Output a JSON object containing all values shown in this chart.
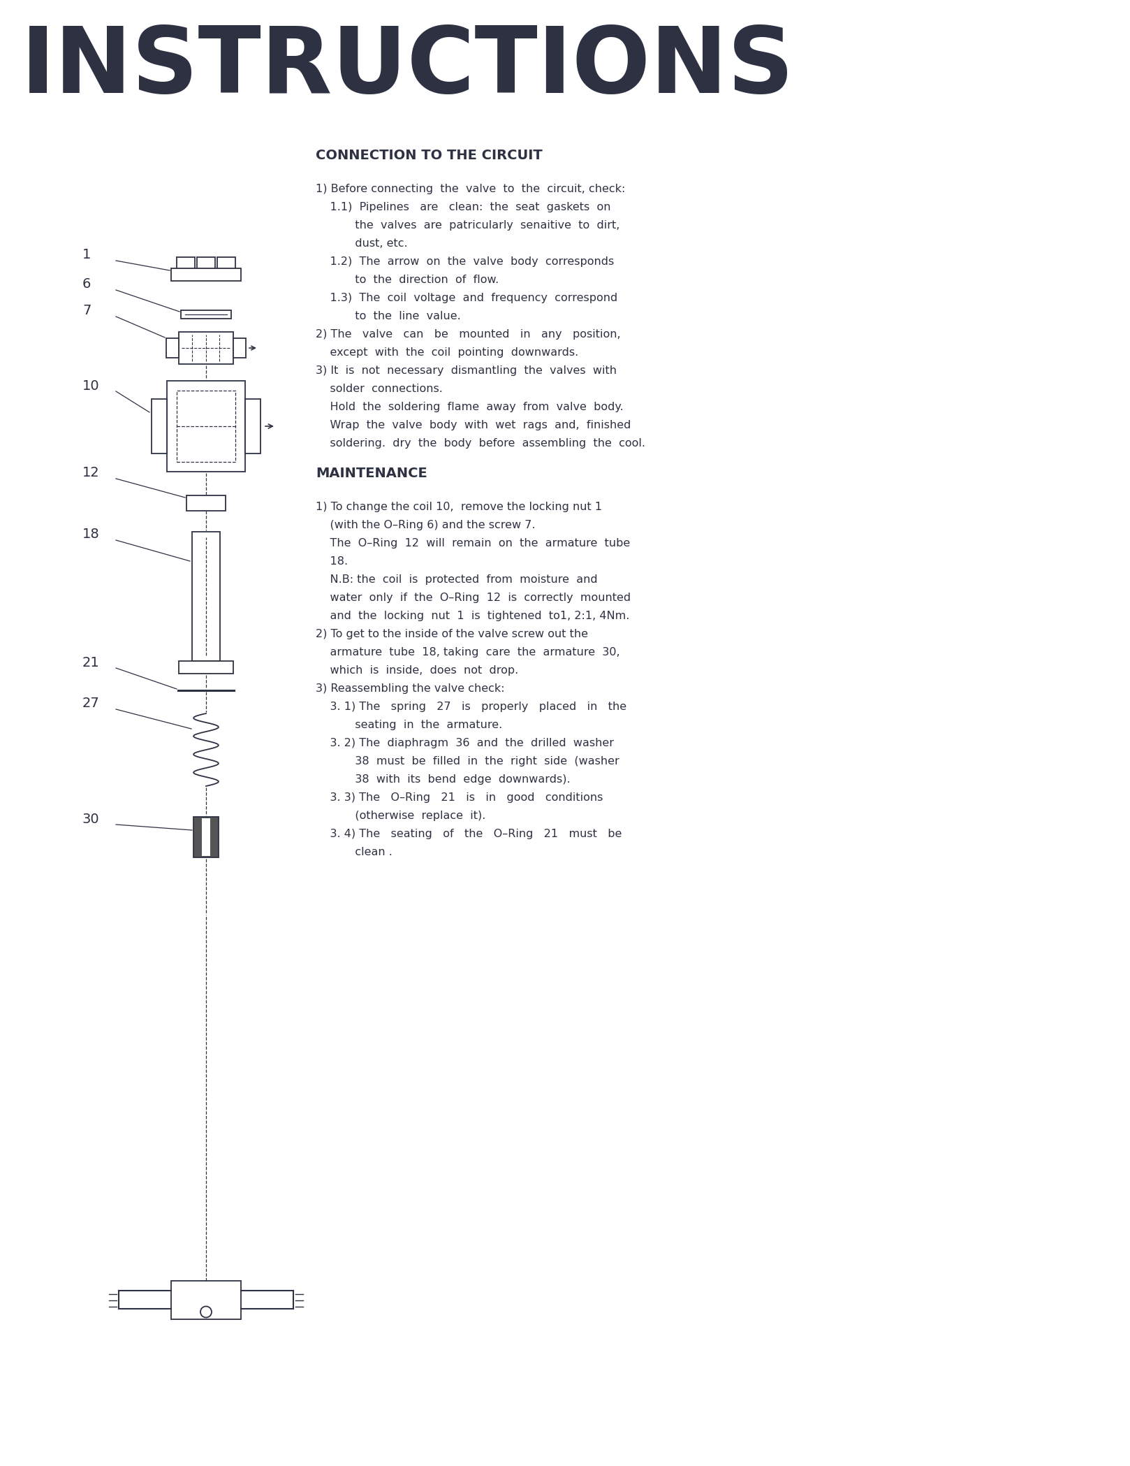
{
  "title": "INSTRUCTIONS",
  "bg_color": "#ffffff",
  "text_color": "#2d3142",
  "section1_title": "CONNECTION TO THE CIRCUIT",
  "section1_lines": [
    "1) Before connecting  the  valve  to  the  circuit, check:",
    "    1.1)  Pipelines   are   clean:  the  seat  gaskets  on",
    "           the  valves  are  patricularly  senaitive  to  dirt,",
    "           dust, etc.",
    "    1.2)  The  arrow  on  the  valve  body  corresponds",
    "           to  the  direction  of  flow.",
    "    1.3)  The  coil  voltage  and  frequency  correspond",
    "           to  the  line  value.",
    "2) The   valve   can   be   mounted   in   any   position,",
    "    except  with  the  coil  pointing  downwards.",
    "3) It  is  not  necessary  dismantling  the  valves  with",
    "    solder  connections.",
    "    Hold  the  soldering  flame  away  from  valve  body.",
    "    Wrap  the  valve  body  with  wet  rags  and,  finished",
    "    soldering.  dry  the  body  before  assembling  the  cool."
  ],
  "section2_title": "MAINTENANCE",
  "section2_lines": [
    "1) To change the coil 10,  remove the locking nut 1",
    "    (with the O–Ring 6) and the screw 7.",
    "    The  O–Ring  12  will  remain  on  the  armature  tube",
    "    18.",
    "    N.B: the  coil  is  protected  from  moisture  and",
    "    water  only  if  the  O–Ring  12  is  correctly  mounted",
    "    and  the  locking  nut  1  is  tightened  to1, 2:1, 4Nm.",
    "2) To get to the inside of the valve screw out the",
    "    armature  tube  18, taking  care  the  armature  30,",
    "    which  is  inside,  does  not  drop.",
    "3) Reassembling the valve check:",
    "    3. 1) The   spring   27   is   properly   placed   in   the",
    "           seating  in  the  armature.",
    "    3. 2) The  diaphragm  36  and  the  drilled  washer",
    "           38  must  be  filled  in  the  right  side  (washer",
    "           38  with  its  bend  edge  downwards).",
    "    3. 3) The   O–Ring   21   is   in   good   conditions",
    "           (otherwise  replace  it).",
    "    3. 4) The   seating   of   the   O–Ring   21   must   be",
    "           clean ."
  ]
}
